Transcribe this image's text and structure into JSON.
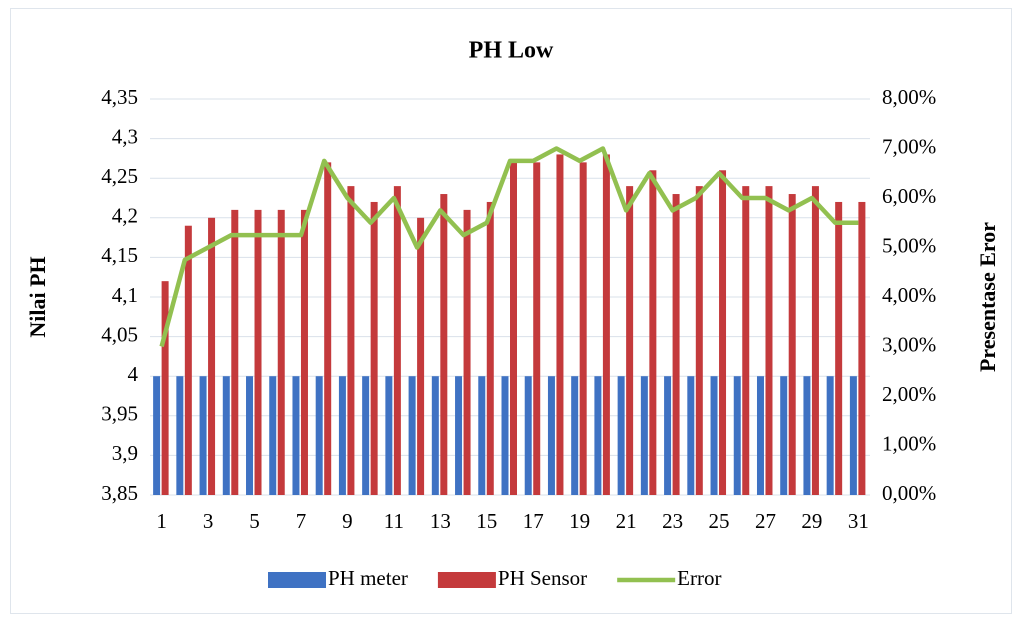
{
  "chart_data": {
    "type": "bar_line",
    "title": "PH Low",
    "y_label": "Nilai PH",
    "y2_label": "Presentase Eror",
    "categories": [
      "1",
      null,
      "3",
      null,
      "5",
      null,
      "7",
      null,
      "9",
      null,
      "11",
      null,
      "13",
      null,
      "15",
      null,
      "17",
      null,
      "19",
      null,
      "21",
      null,
      "23",
      null,
      "25",
      null,
      "27",
      null,
      "29",
      null,
      "31"
    ],
    "series": [
      {
        "name": "PH meter",
        "color": "#3f72c3",
        "type": "bar",
        "values": [
          4,
          4,
          4,
          4,
          4,
          4,
          4,
          4,
          4,
          4,
          4,
          4,
          4,
          4,
          4,
          4,
          4,
          4,
          4,
          4,
          4,
          4,
          4,
          4,
          4,
          4,
          4,
          4,
          4,
          4,
          4
        ]
      },
      {
        "name": "PH Sensor",
        "color": "#c43a3c",
        "type": "bar",
        "values": [
          4.12,
          4.19,
          4.2,
          4.21,
          4.21,
          4.21,
          4.21,
          4.27,
          4.24,
          4.22,
          4.24,
          4.2,
          4.23,
          4.21,
          4.22,
          4.27,
          4.27,
          4.28,
          4.27,
          4.28,
          4.24,
          4.26,
          4.23,
          4.24,
          4.26,
          4.24,
          4.24,
          4.23,
          4.24,
          4.22,
          4.22
        ]
      },
      {
        "name": "Error",
        "color": "#92c050",
        "type": "line",
        "axis": "y2",
        "values": [
          3,
          4.75,
          5,
          5.25,
          5.25,
          5.25,
          5.25,
          6.75,
          6,
          5.5,
          6,
          5,
          5.75,
          5.25,
          5.5,
          6.75,
          6.75,
          7,
          6.75,
          7,
          5.75,
          6.5,
          5.75,
          6,
          6.5,
          6,
          6,
          5.75,
          6,
          5.5,
          5.5
        ]
      }
    ],
    "ylim": [
      3.85,
      4.35
    ],
    "yticks": [
      {
        "value": 3.85,
        "label": "3,85"
      },
      {
        "value": 3.9,
        "label": "3,9"
      },
      {
        "value": 3.95,
        "label": "3,95"
      },
      4,
      {
        "value": 4.05,
        "label": "4,05"
      },
      {
        "value": 4.1,
        "label": "4,1"
      },
      {
        "value": 4.15,
        "label": "4,15"
      },
      {
        "value": 4.2,
        "label": "4,2"
      },
      {
        "value": 4.25,
        "label": "4,25"
      },
      {
        "value": 4.3,
        "label": "4,3"
      },
      {
        "value": 4.35,
        "label": "4,35"
      }
    ],
    "y2lim": [
      0,
      8
    ],
    "y2ticks": [
      {
        "value": 0,
        "label": "0,00%"
      },
      {
        "value": 1,
        "label": "1,00%"
      },
      {
        "value": 2,
        "label": "2,00%"
      },
      {
        "value": 3,
        "label": "3,00%"
      },
      {
        "value": 4,
        "label": "4,00%"
      },
      {
        "value": 5,
        "label": "5,00%"
      },
      {
        "value": 6,
        "label": "6,00%"
      },
      {
        "value": 7,
        "label": "7,00%"
      },
      {
        "value": 8,
        "label": "8,00%"
      }
    ],
    "grid": true,
    "legend": "bottom"
  }
}
